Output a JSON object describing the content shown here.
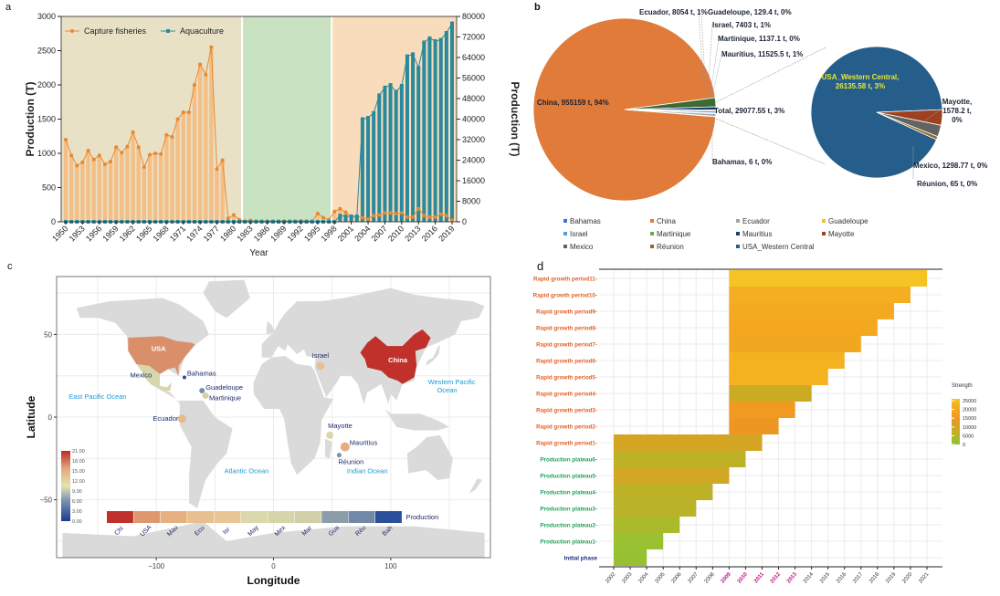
{
  "panels": {
    "a": "a",
    "b": "b",
    "c": "c",
    "d": "d"
  },
  "chart_data": [
    {
      "id": "a",
      "type": "bar+line",
      "title": "",
      "xlabel": "Year",
      "ylabel_left": "Production (T)",
      "ylabel_right": "Production (T)",
      "ylim_left": [
        0,
        3000
      ],
      "ylim_right": [
        0,
        80000
      ],
      "yticks_left": [
        "0",
        "500",
        "1000",
        "1500",
        "2000",
        "2500",
        "3000"
      ],
      "yticks_right": [
        "0",
        "8000",
        "16000",
        "24000",
        "32000",
        "40000",
        "48000",
        "56000",
        "64000",
        "72000",
        "80000"
      ],
      "xtick_labels": [
        "1950",
        "1953",
        "1956",
        "1959",
        "1962",
        "1965",
        "1968",
        "1971",
        "1974",
        "1977",
        "1980",
        "1983",
        "1986",
        "1989",
        "1992",
        "1995",
        "1998",
        "2001",
        "2004",
        "2007",
        "2010",
        "2013",
        "2016",
        "2019"
      ],
      "legend": {
        "placement": "top-left",
        "entries": [
          "Capture fisheries",
          "Aquaculture"
        ]
      },
      "background_periods": [
        {
          "from": 1950,
          "to": 1981,
          "color": "#e9e1c6"
        },
        {
          "from": 1982,
          "to": 1997,
          "color": "#c9e2c2"
        },
        {
          "from": 1998,
          "to": 2019,
          "color": "#f8dcbb"
        }
      ],
      "colors": {
        "capture": "#e8892e",
        "capture_bar": "#f3bf87",
        "aquaculture": "#2a8a9c"
      },
      "years": [
        1950,
        1951,
        1952,
        1953,
        1954,
        1955,
        1956,
        1957,
        1958,
        1959,
        1960,
        1961,
        1962,
        1963,
        1964,
        1965,
        1966,
        1967,
        1968,
        1969,
        1970,
        1971,
        1972,
        1973,
        1974,
        1975,
        1976,
        1977,
        1978,
        1979,
        1980,
        1981,
        1982,
        1983,
        1984,
        1985,
        1986,
        1987,
        1988,
        1989,
        1990,
        1991,
        1992,
        1993,
        1994,
        1995,
        1996,
        1997,
        1998,
        1999,
        2000,
        2001,
        2002,
        2003,
        2004,
        2005,
        2006,
        2007,
        2008,
        2009,
        2010,
        2011,
        2012,
        2013,
        2014,
        2015,
        2016,
        2017,
        2018,
        2019
      ],
      "series": [
        {
          "name": "Capture fisheries",
          "axis": "left",
          "values": [
            1200,
            970,
            820,
            870,
            1040,
            910,
            970,
            840,
            880,
            1090,
            1010,
            1100,
            1310,
            1090,
            800,
            980,
            1000,
            990,
            1270,
            1240,
            1500,
            1600,
            1600,
            2000,
            2300,
            2150,
            2550,
            770,
            900,
            50,
            100,
            30,
            10,
            20,
            10,
            10,
            10,
            10,
            10,
            10,
            10,
            10,
            15,
            10,
            10,
            120,
            60,
            30,
            150,
            190,
            140,
            80,
            80,
            60,
            40,
            90,
            100,
            130,
            130,
            120,
            130,
            70,
            70,
            190,
            90,
            70,
            70,
            110,
            90,
            20
          ]
        },
        {
          "name": "Aquaculture",
          "axis": "right",
          "values": [
            0,
            0,
            0,
            0,
            0,
            0,
            0,
            0,
            0,
            0,
            0,
            0,
            0,
            0,
            0,
            0,
            0,
            0,
            0,
            0,
            0,
            0,
            0,
            0,
            0,
            0,
            0,
            0,
            0,
            0,
            0,
            0,
            0,
            0,
            0,
            0,
            0,
            0,
            0,
            0,
            0,
            0,
            0,
            0,
            0,
            0,
            0,
            0,
            0,
            2400,
            2100,
            2100,
            2100,
            40000,
            40500,
            42400,
            49300,
            52300,
            53300,
            50700,
            53000,
            64500,
            65300,
            60000,
            69900,
            71500,
            70400,
            70900,
            73600,
            77300
          ]
        }
      ]
    },
    {
      "id": "b",
      "type": "pie",
      "title": "",
      "main_pie": [
        {
          "label": "China, 955159 t, 94%",
          "name": "China",
          "value": 955159,
          "color": "#e07b39"
        },
        {
          "label": "Total, 29077.55 t, 3%",
          "name": "Total",
          "value": 29077.55,
          "color": "#3b6a33"
        },
        {
          "label": "Mauritius, 11525.5 t, 1%",
          "name": "Mauritius",
          "value": 11525.5,
          "color": "#1f3f6e"
        },
        {
          "label": "Martinique, 1137.1 t, 0%",
          "name": "Martinique",
          "value": 1137.1,
          "color": "#6aa84f"
        },
        {
          "label": "Israel, 7403 t, 1%",
          "name": "Israel",
          "value": 7403,
          "color": "#5b9bd5"
        },
        {
          "label": "Guadeloupe, 129.4 t, 0%",
          "name": "Guadeloupe",
          "value": 129.4,
          "color": "#f2c12e"
        },
        {
          "label": "Ecuador, 8054 t, 1%",
          "name": "Ecuador",
          "value": 8054,
          "color": "#a5a5a5"
        },
        {
          "label": "Bahamas, 6 t, 0%",
          "name": "Bahamas",
          "value": 6,
          "color": "#4472c4"
        }
      ],
      "sub_pie": [
        {
          "label": "USA_Western Central, 26135.58 t, 3%",
          "name": "USA_Western Central",
          "value": 26135.58,
          "color": "#255e8a"
        },
        {
          "label": "Mayotte, 1578.2 t, 0%",
          "name": "Mayotte",
          "value": 1578.2,
          "color": "#9c4221"
        },
        {
          "label": "Mexico, 1298.77 t, 0%",
          "name": "Mexico",
          "value": 1298.77,
          "color": "#636363"
        },
        {
          "label": "Réunion, 65 t, 0%",
          "name": "Réunion",
          "value": 65,
          "color": "#8c6d1f"
        }
      ],
      "ylabel": "Production (T)",
      "legend": {
        "placement": "bottom",
        "entries": [
          {
            "name": "Bahamas",
            "color": "#4472c4"
          },
          {
            "name": "China",
            "color": "#e07b39"
          },
          {
            "name": "Ecuador",
            "color": "#a5a5a5"
          },
          {
            "name": "Guadeloupe",
            "color": "#f2c12e"
          },
          {
            "name": "Israel",
            "color": "#5b9bd5"
          },
          {
            "name": "Martinique",
            "color": "#6aa84f"
          },
          {
            "name": "Mauritius",
            "color": "#1f3f6e"
          },
          {
            "name": "Mayotte",
            "color": "#9c4221"
          },
          {
            "name": "Mexico",
            "color": "#636363"
          },
          {
            "name": "Réunion",
            "color": "#8c6d1f"
          },
          {
            "name": "USA_Western Central",
            "color": "#255e8a"
          }
        ]
      }
    },
    {
      "id": "c",
      "type": "map",
      "xlabel": "Longitude",
      "ylabel": "Latitude",
      "xlim": [
        -185,
        185
      ],
      "ylim": [
        -85,
        85
      ],
      "xticks": [
        -100,
        0,
        100
      ],
      "xtick_labels": [
        "-100",
        "0",
        "100"
      ],
      "yticks": [
        -50,
        0,
        50
      ],
      "ytick_labels": [
        "-50",
        "0",
        "50"
      ],
      "colorbar": {
        "min": 0,
        "max": 21,
        "labels": [
          "21.00",
          "18.00",
          "15.00",
          "12.00",
          "9.00",
          "6.00",
          "3.00",
          "0.00"
        ]
      },
      "regions": [
        {
          "name": "USA",
          "label": "USA",
          "lon": -98,
          "lat": 39,
          "color": "#d9906a",
          "kind": "country"
        },
        {
          "name": "Mexico",
          "label": "Mexico",
          "lon": -102,
          "lat": 23,
          "color": "#d8d6ad",
          "kind": "country"
        },
        {
          "name": "China",
          "label": "China",
          "lon": 103,
          "lat": 35,
          "color": "#c0312b",
          "kind": "country"
        },
        {
          "name": "Bahamas",
          "label": "Bahamas",
          "lon": -76,
          "lat": 24,
          "color": "#2f4fa0",
          "kind": "point",
          "size": 2
        },
        {
          "name": "Guadeloupe",
          "label": "Guadeloupe",
          "lon": -61,
          "lat": 16,
          "color": "#7a8fae",
          "kind": "point",
          "size": 3
        },
        {
          "name": "Martinique",
          "label": "Martinique",
          "lon": -58,
          "lat": 13,
          "color": "#d6d2a8",
          "kind": "point",
          "size": 3.5
        },
        {
          "name": "Ecuador",
          "label": "Ecuador",
          "lon": -78,
          "lat": -1,
          "color": "#e6b98a",
          "kind": "point",
          "size": 4.5
        },
        {
          "name": "Israel",
          "label": "Israel",
          "lon": 40,
          "lat": 31,
          "color": "#e7c193",
          "kind": "point",
          "size": 4.5
        },
        {
          "name": "Mayotte",
          "label": "Mayotte",
          "lon": 48,
          "lat": -11,
          "color": "#dcd6a8",
          "kind": "point",
          "size": 4
        },
        {
          "name": "Mauritius",
          "label": "Mauritius",
          "lon": 61,
          "lat": -18,
          "color": "#e7ac7e",
          "kind": "point",
          "size": 5
        },
        {
          "name": "Réunion",
          "label": "Réunion",
          "lon": 56,
          "lat": -23,
          "color": "#7a8fae",
          "kind": "point",
          "size": 2.5
        }
      ],
      "ocean_labels": [
        {
          "text": "East Pacific Ocean",
          "lon": -150,
          "lat": 11
        },
        {
          "text": "Atlantic Ocean",
          "lon": -23,
          "lat": -34
        },
        {
          "text": "Indian Ocean",
          "lon": 80,
          "lat": -34
        },
        {
          "text": "Western Pacific",
          "lon": 152,
          "lat": 20
        },
        {
          "text": "Ocean",
          "lon": 148,
          "lat": 15
        }
      ],
      "production_legend": {
        "title": "Production",
        "items": [
          {
            "abbr": "Chi",
            "color": "#c0312b"
          },
          {
            "abbr": "USA",
            "color": "#dd9870"
          },
          {
            "abbr": "Mau",
            "color": "#e7b080"
          },
          {
            "abbr": "Ecu",
            "color": "#e8c08f"
          },
          {
            "abbr": "Isr",
            "color": "#e9c595"
          },
          {
            "abbr": "May",
            "color": "#dbd8ab"
          },
          {
            "abbr": "Mex",
            "color": "#d6d4a9"
          },
          {
            "abbr": "Mar",
            "color": "#d2cfa8"
          },
          {
            "abbr": "Gua",
            "color": "#8c9ca9"
          },
          {
            "abbr": "Réu",
            "color": "#7288a6"
          },
          {
            "abbr": "Bah",
            "color": "#2c4f9c"
          }
        ]
      }
    },
    {
      "id": "d",
      "type": "bar",
      "orientation": "horizontal-range",
      "xlabel": "",
      "ylabel": "",
      "xlim": [
        2002,
        2021
      ],
      "xtick_labels": [
        "2002",
        "2003",
        "2004",
        "2005",
        "2006",
        "2007",
        "2008",
        "2009",
        "2010",
        "2011",
        "2012",
        "2013",
        "2014",
        "2015",
        "2016",
        "2017",
        "2018",
        "2019",
        "2020",
        "2021"
      ],
      "highlight_ticks": [
        "2009",
        "2010",
        "2011",
        "2012",
        "2013"
      ],
      "highlight_color": "#c2168a",
      "legend": {
        "title": "Strength",
        "placement": "right",
        "min": 0,
        "max": 25000,
        "labels": [
          "25000",
          "20000",
          "15000",
          "10000",
          "5000",
          "0"
        ]
      },
      "rows": [
        {
          "label": "Rapid growth period11",
          "start": 2009,
          "end": 2021,
          "strength": 25000,
          "group": "rapid"
        },
        {
          "label": "Rapid growth period10",
          "start": 2009,
          "end": 2020,
          "strength": 21000,
          "group": "rapid"
        },
        {
          "label": "Rapid growth period9",
          "start": 2009,
          "end": 2019,
          "strength": 20000,
          "group": "rapid"
        },
        {
          "label": "Rapid growth period8",
          "start": 2009,
          "end": 2018,
          "strength": 19500,
          "group": "rapid"
        },
        {
          "label": "Rapid growth period7",
          "start": 2009,
          "end": 2017,
          "strength": 19000,
          "group": "rapid"
        },
        {
          "label": "Rapid growth period6",
          "start": 2009,
          "end": 2016,
          "strength": 21500,
          "group": "rapid"
        },
        {
          "label": "Rapid growth period5",
          "start": 2009,
          "end": 2015,
          "strength": 21500,
          "group": "rapid"
        },
        {
          "label": "Rapid growth period4",
          "start": 2009,
          "end": 2014,
          "strength": 8000,
          "group": "rapid"
        },
        {
          "label": "Rapid growth period3",
          "start": 2009,
          "end": 2013,
          "strength": 15000,
          "group": "rapid"
        },
        {
          "label": "Rapid growth period2",
          "start": 2009,
          "end": 2012,
          "strength": 13500,
          "group": "rapid"
        },
        {
          "label": "Rapid growth period1",
          "start": 2002,
          "end": 2011,
          "strength": 9500,
          "group": "rapid"
        },
        {
          "label": "Production plateau6",
          "start": 2002,
          "end": 2010,
          "strength": 6000,
          "group": "plateau"
        },
        {
          "label": "Production plateau5",
          "start": 2002,
          "end": 2009,
          "strength": 9000,
          "group": "plateau"
        },
        {
          "label": "Production plateau4",
          "start": 2002,
          "end": 2008,
          "strength": 6000,
          "group": "plateau"
        },
        {
          "label": "Production plateau3",
          "start": 2002,
          "end": 2007,
          "strength": 5500,
          "group": "plateau"
        },
        {
          "label": "Production plateau2",
          "start": 2002,
          "end": 2006,
          "strength": 3500,
          "group": "plateau"
        },
        {
          "label": "Production plateau1",
          "start": 2002,
          "end": 2005,
          "strength": 1000,
          "group": "plateau"
        },
        {
          "label": "Initial phase",
          "start": 2002,
          "end": 2004,
          "strength": 800,
          "group": "initial"
        }
      ],
      "label_colors": {
        "rapid": "#e0622a",
        "plateau": "#1fa35a",
        "initial": "#1d2a80"
      }
    }
  ]
}
